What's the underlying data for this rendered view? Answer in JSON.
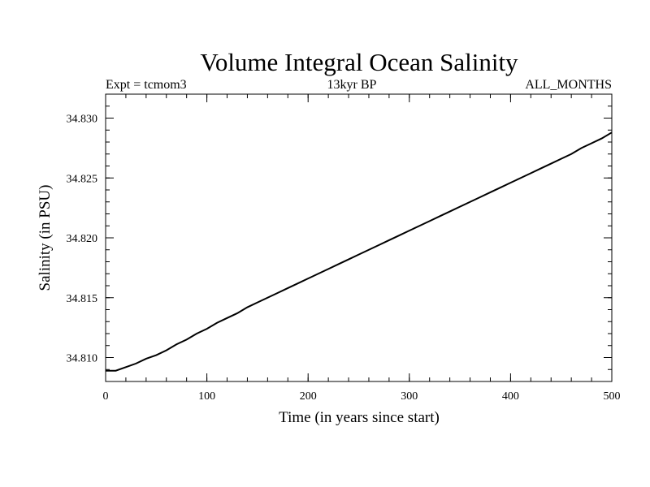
{
  "chart_data": {
    "type": "line",
    "title": "Volume Integral Ocean Salinity",
    "subtitle_left": "Expt = tcmom3",
    "subtitle_center": "13kyr BP",
    "subtitle_right": "ALL_MONTHS",
    "xlabel": "Time (in years since start)",
    "ylabel": "Salinity (in PSU)",
    "xlim": [
      0,
      500
    ],
    "ylim": [
      34.808,
      34.832
    ],
    "xticks": [
      0,
      100,
      200,
      300,
      400,
      500
    ],
    "xtick_labels": [
      "0",
      "100",
      "200",
      "300",
      "400",
      "500"
    ],
    "yticks": [
      34.81,
      34.815,
      34.82,
      34.825,
      34.83
    ],
    "ytick_labels": [
      "34.810",
      "34.815",
      "34.820",
      "34.825",
      "34.830"
    ],
    "grid": false,
    "series": [
      {
        "x": [
          0,
          10,
          20,
          30,
          40,
          50,
          60,
          70,
          80,
          90,
          100,
          110,
          120,
          130,
          140,
          150,
          160,
          170,
          180,
          190,
          200,
          210,
          220,
          230,
          240,
          250,
          260,
          270,
          280,
          290,
          300,
          310,
          320,
          330,
          340,
          350,
          360,
          370,
          380,
          390,
          400,
          410,
          420,
          430,
          440,
          450,
          460,
          470,
          480,
          490,
          500
        ],
        "values": [
          34.8089,
          34.8089,
          34.8092,
          34.8095,
          34.8099,
          34.8102,
          34.8106,
          34.8111,
          34.8115,
          34.812,
          34.8124,
          34.8129,
          34.8133,
          34.8137,
          34.8142,
          34.8146,
          34.815,
          34.8154,
          34.8158,
          34.8162,
          34.8166,
          34.817,
          34.8174,
          34.8178,
          34.8182,
          34.8186,
          34.819,
          34.8194,
          34.8198,
          34.8202,
          34.8206,
          34.821,
          34.8214,
          34.8218,
          34.8222,
          34.8226,
          34.823,
          34.8234,
          34.8238,
          34.8242,
          34.8246,
          34.825,
          34.8254,
          34.8258,
          34.8262,
          34.8266,
          34.827,
          34.8275,
          34.8279,
          34.8283,
          34.8288
        ]
      }
    ]
  }
}
